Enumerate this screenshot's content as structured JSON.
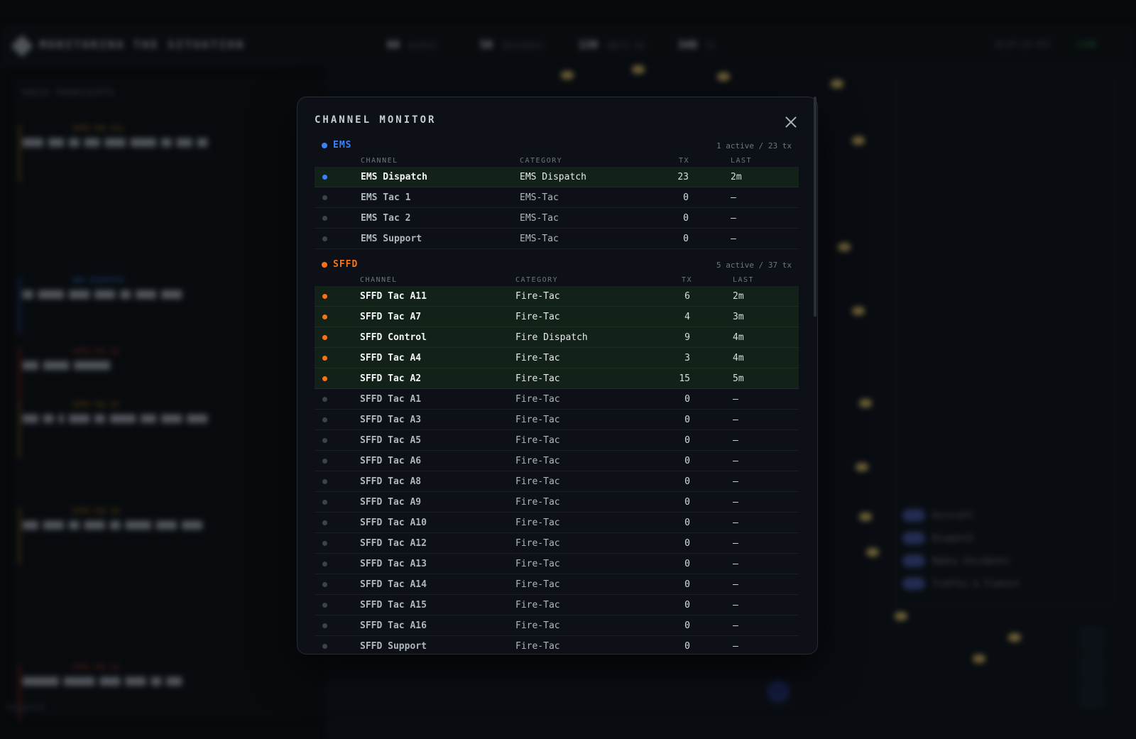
{
  "background": {
    "app_title": "MONITORING THE SITUATION",
    "stats": [
      {
        "value": "60",
        "label": "ALERTS"
      },
      {
        "value": "58",
        "label": "INCIDENTS"
      },
      {
        "value": "139",
        "label": "UNITS IN"
      },
      {
        "value": "348",
        "label": "TX"
      }
    ],
    "clock": "16:07:33 PST",
    "live": "LIVE",
    "feed_header": "RADIO TRANSCRIPTS",
    "layers": [
      "Aircraft",
      "Dispatch",
      "Radio Incidents",
      "Traffic & Transit"
    ],
    "footer": "Dispatch"
  },
  "modal": {
    "title": "CHANNEL MONITOR",
    "columns": {
      "channel": "CHANNEL",
      "category": "CATEGORY",
      "tx": "TX",
      "last": "LAST"
    },
    "groups": [
      {
        "name": "EMS",
        "color": "#3b82f6",
        "stats": "1 active / 23 tx",
        "rows": [
          {
            "channel": "EMS Dispatch",
            "category": "EMS Dispatch",
            "tx": "23",
            "last": "2m",
            "active": true
          },
          {
            "channel": "EMS Tac 1",
            "category": "EMS-Tac",
            "tx": "0",
            "last": "—",
            "active": false
          },
          {
            "channel": "EMS Tac 2",
            "category": "EMS-Tac",
            "tx": "0",
            "last": "—",
            "active": false
          },
          {
            "channel": "EMS Support",
            "category": "EMS-Tac",
            "tx": "0",
            "last": "—",
            "active": false
          }
        ]
      },
      {
        "name": "SFFD",
        "color": "#f97316",
        "stats": "5 active / 37 tx",
        "rows": [
          {
            "channel": "SFFD Tac A11",
            "category": "Fire-Tac",
            "tx": "6",
            "last": "2m",
            "active": true
          },
          {
            "channel": "SFFD Tac A7",
            "category": "Fire-Tac",
            "tx": "4",
            "last": "3m",
            "active": true
          },
          {
            "channel": "SFFD Control",
            "category": "Fire Dispatch",
            "tx": "9",
            "last": "4m",
            "active": true
          },
          {
            "channel": "SFFD Tac A4",
            "category": "Fire-Tac",
            "tx": "3",
            "last": "4m",
            "active": true
          },
          {
            "channel": "SFFD Tac A2",
            "category": "Fire-Tac",
            "tx": "15",
            "last": "5m",
            "active": true
          },
          {
            "channel": "SFFD Tac A1",
            "category": "Fire-Tac",
            "tx": "0",
            "last": "—",
            "active": false
          },
          {
            "channel": "SFFD Tac A3",
            "category": "Fire-Tac",
            "tx": "0",
            "last": "—",
            "active": false
          },
          {
            "channel": "SFFD Tac A5",
            "category": "Fire-Tac",
            "tx": "0",
            "last": "—",
            "active": false
          },
          {
            "channel": "SFFD Tac A6",
            "category": "Fire-Tac",
            "tx": "0",
            "last": "—",
            "active": false
          },
          {
            "channel": "SFFD Tac A8",
            "category": "Fire-Tac",
            "tx": "0",
            "last": "—",
            "active": false
          },
          {
            "channel": "SFFD Tac A9",
            "category": "Fire-Tac",
            "tx": "0",
            "last": "—",
            "active": false
          },
          {
            "channel": "SFFD Tac A10",
            "category": "Fire-Tac",
            "tx": "0",
            "last": "—",
            "active": false
          },
          {
            "channel": "SFFD Tac A12",
            "category": "Fire-Tac",
            "tx": "0",
            "last": "—",
            "active": false
          },
          {
            "channel": "SFFD Tac A13",
            "category": "Fire-Tac",
            "tx": "0",
            "last": "—",
            "active": false
          },
          {
            "channel": "SFFD Tac A14",
            "category": "Fire-Tac",
            "tx": "0",
            "last": "—",
            "active": false
          },
          {
            "channel": "SFFD Tac A15",
            "category": "Fire-Tac",
            "tx": "0",
            "last": "—",
            "active": false
          },
          {
            "channel": "SFFD Tac A16",
            "category": "Fire-Tac",
            "tx": "0",
            "last": "—",
            "active": false
          },
          {
            "channel": "SFFD Support",
            "category": "Fire-Tac",
            "tx": "0",
            "last": "—",
            "active": false
          }
        ]
      }
    ]
  }
}
